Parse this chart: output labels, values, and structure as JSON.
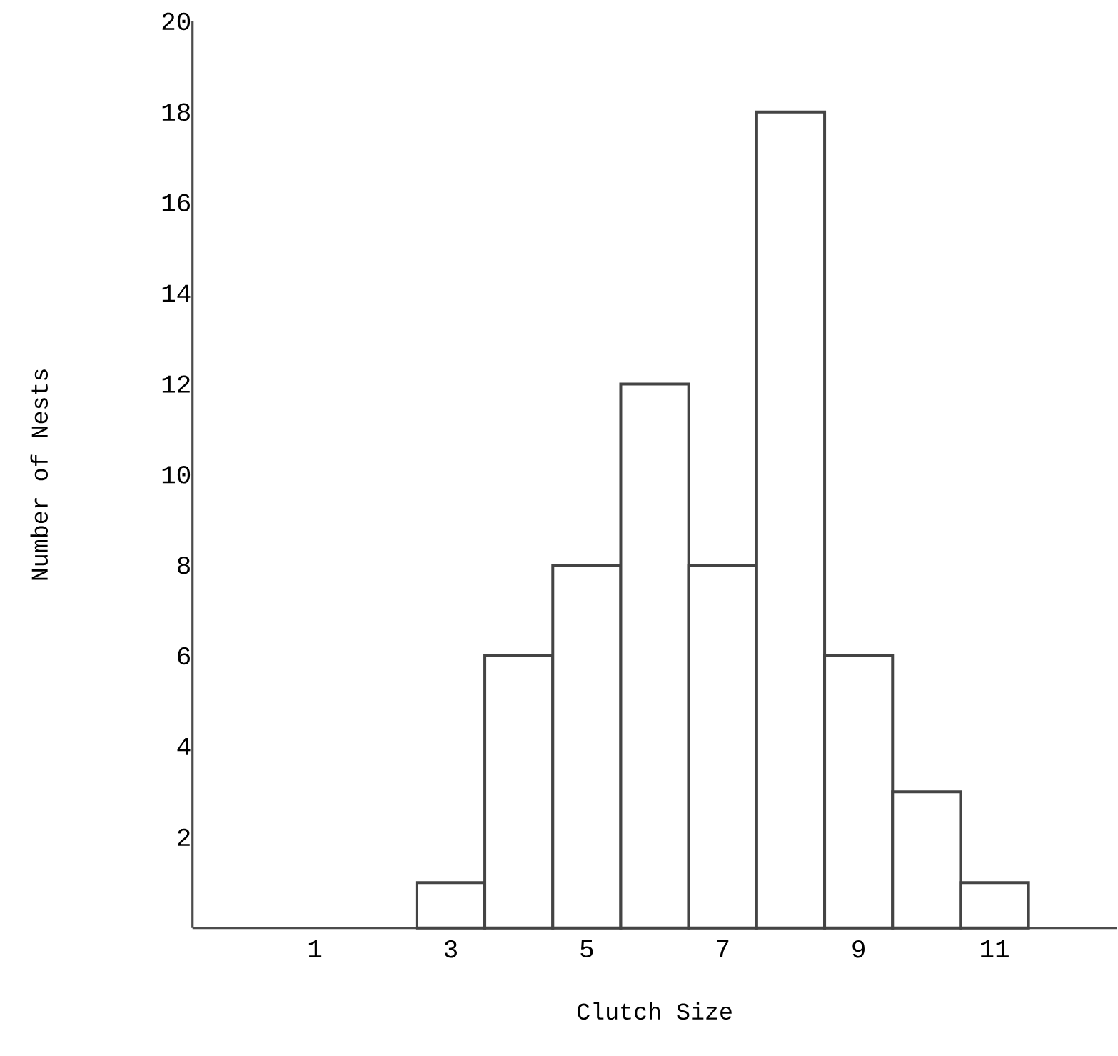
{
  "chart_data": {
    "type": "histogram",
    "xlabel": "Clutch Size",
    "ylabel": "Number of Nests",
    "bins": [
      2.5,
      3.5,
      4.5,
      5.5,
      6.5,
      7.5,
      8.5,
      9.5,
      10.5,
      11.5
    ],
    "values": [
      1,
      6,
      8,
      12,
      8,
      18,
      6,
      3,
      1
    ],
    "color": "#444444",
    "xlim": [
      -0.8,
      12.8
    ],
    "ylim": [
      0,
      20
    ],
    "xticks": [
      1,
      3,
      5,
      7,
      9,
      11
    ],
    "yticks": [
      2,
      4,
      6,
      8,
      10,
      12,
      14,
      16,
      18,
      20
    ]
  }
}
